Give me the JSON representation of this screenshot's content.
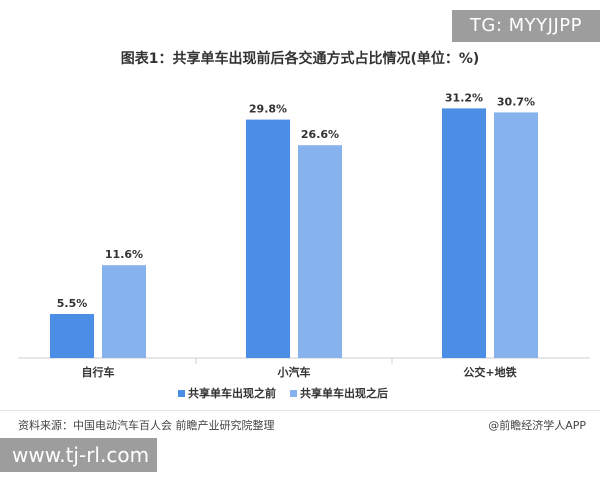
{
  "badge": {
    "top_right": "TG: MYYJJPP"
  },
  "footer": {
    "source": "资料来源：中国电动汽车百人会 前瞻产业研究院整理",
    "credit": "@前瞻经济学人APP",
    "url": "www.tj-rl.com"
  },
  "colors": {
    "before": "#4a8ee6",
    "after": "#86b3ee",
    "axis": "#cfcfcf"
  },
  "chart_data": {
    "type": "bar",
    "title": "图表1：共享单车出现前后各交通方式占比情况(单位：%)",
    "categories": [
      "自行车",
      "小汽车",
      "公交+地铁"
    ],
    "series": [
      {
        "name": "共享单车出现之前",
        "values": [
          5.5,
          29.8,
          31.2
        ],
        "labels": [
          "5.5%",
          "29.8%",
          "31.2%"
        ]
      },
      {
        "name": "共享单车出现之后",
        "values": [
          11.6,
          26.6,
          30.7
        ],
        "labels": [
          "11.6%",
          "26.6%",
          "30.7%"
        ]
      }
    ],
    "ylim": [
      0,
      32
    ],
    "grid": false,
    "legend": "bottom-center"
  }
}
